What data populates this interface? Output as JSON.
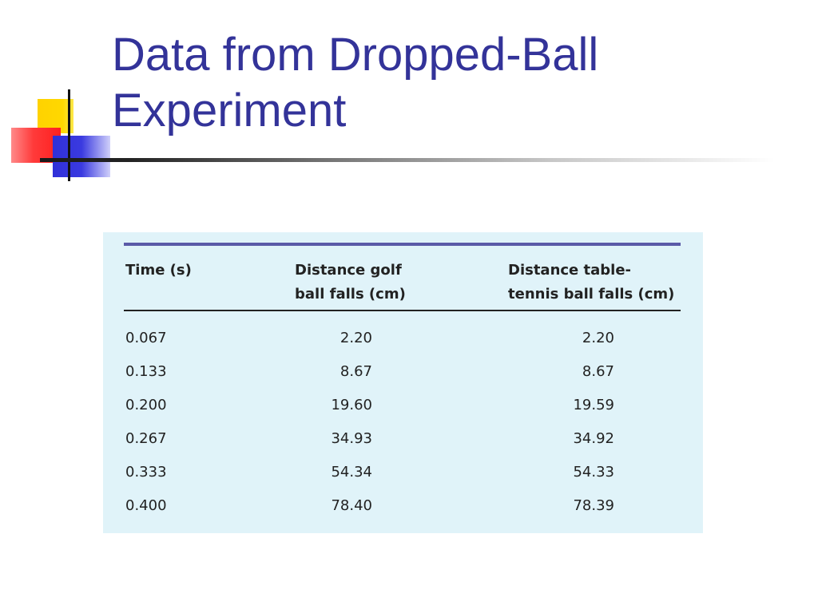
{
  "slide": {
    "title_line1": "Data from Dropped-Ball",
    "title_line2": "Experiment"
  },
  "colors": {
    "title": "#333399",
    "panel_background": "#e0f3f9",
    "panel_top_rule": "#5a5aa8",
    "accent_yellow": "#ffd200",
    "accent_red": "#ff3a3a",
    "accent_blue": "#3030d8"
  },
  "table": {
    "headers": [
      {
        "line1": "Time (s)",
        "line2": ""
      },
      {
        "line1": "Distance golf",
        "line2": "ball falls (cm)"
      },
      {
        "line1": "Distance table-",
        "line2": "tennis ball falls (cm)"
      }
    ],
    "rows": [
      [
        "0.067",
        "2.20",
        "2.20"
      ],
      [
        "0.133",
        "8.67",
        "8.67"
      ],
      [
        "0.200",
        "19.60",
        "19.59"
      ],
      [
        "0.267",
        "34.93",
        "34.92"
      ],
      [
        "0.333",
        "54.34",
        "54.33"
      ],
      [
        "0.400",
        "78.40",
        "78.39"
      ]
    ]
  }
}
